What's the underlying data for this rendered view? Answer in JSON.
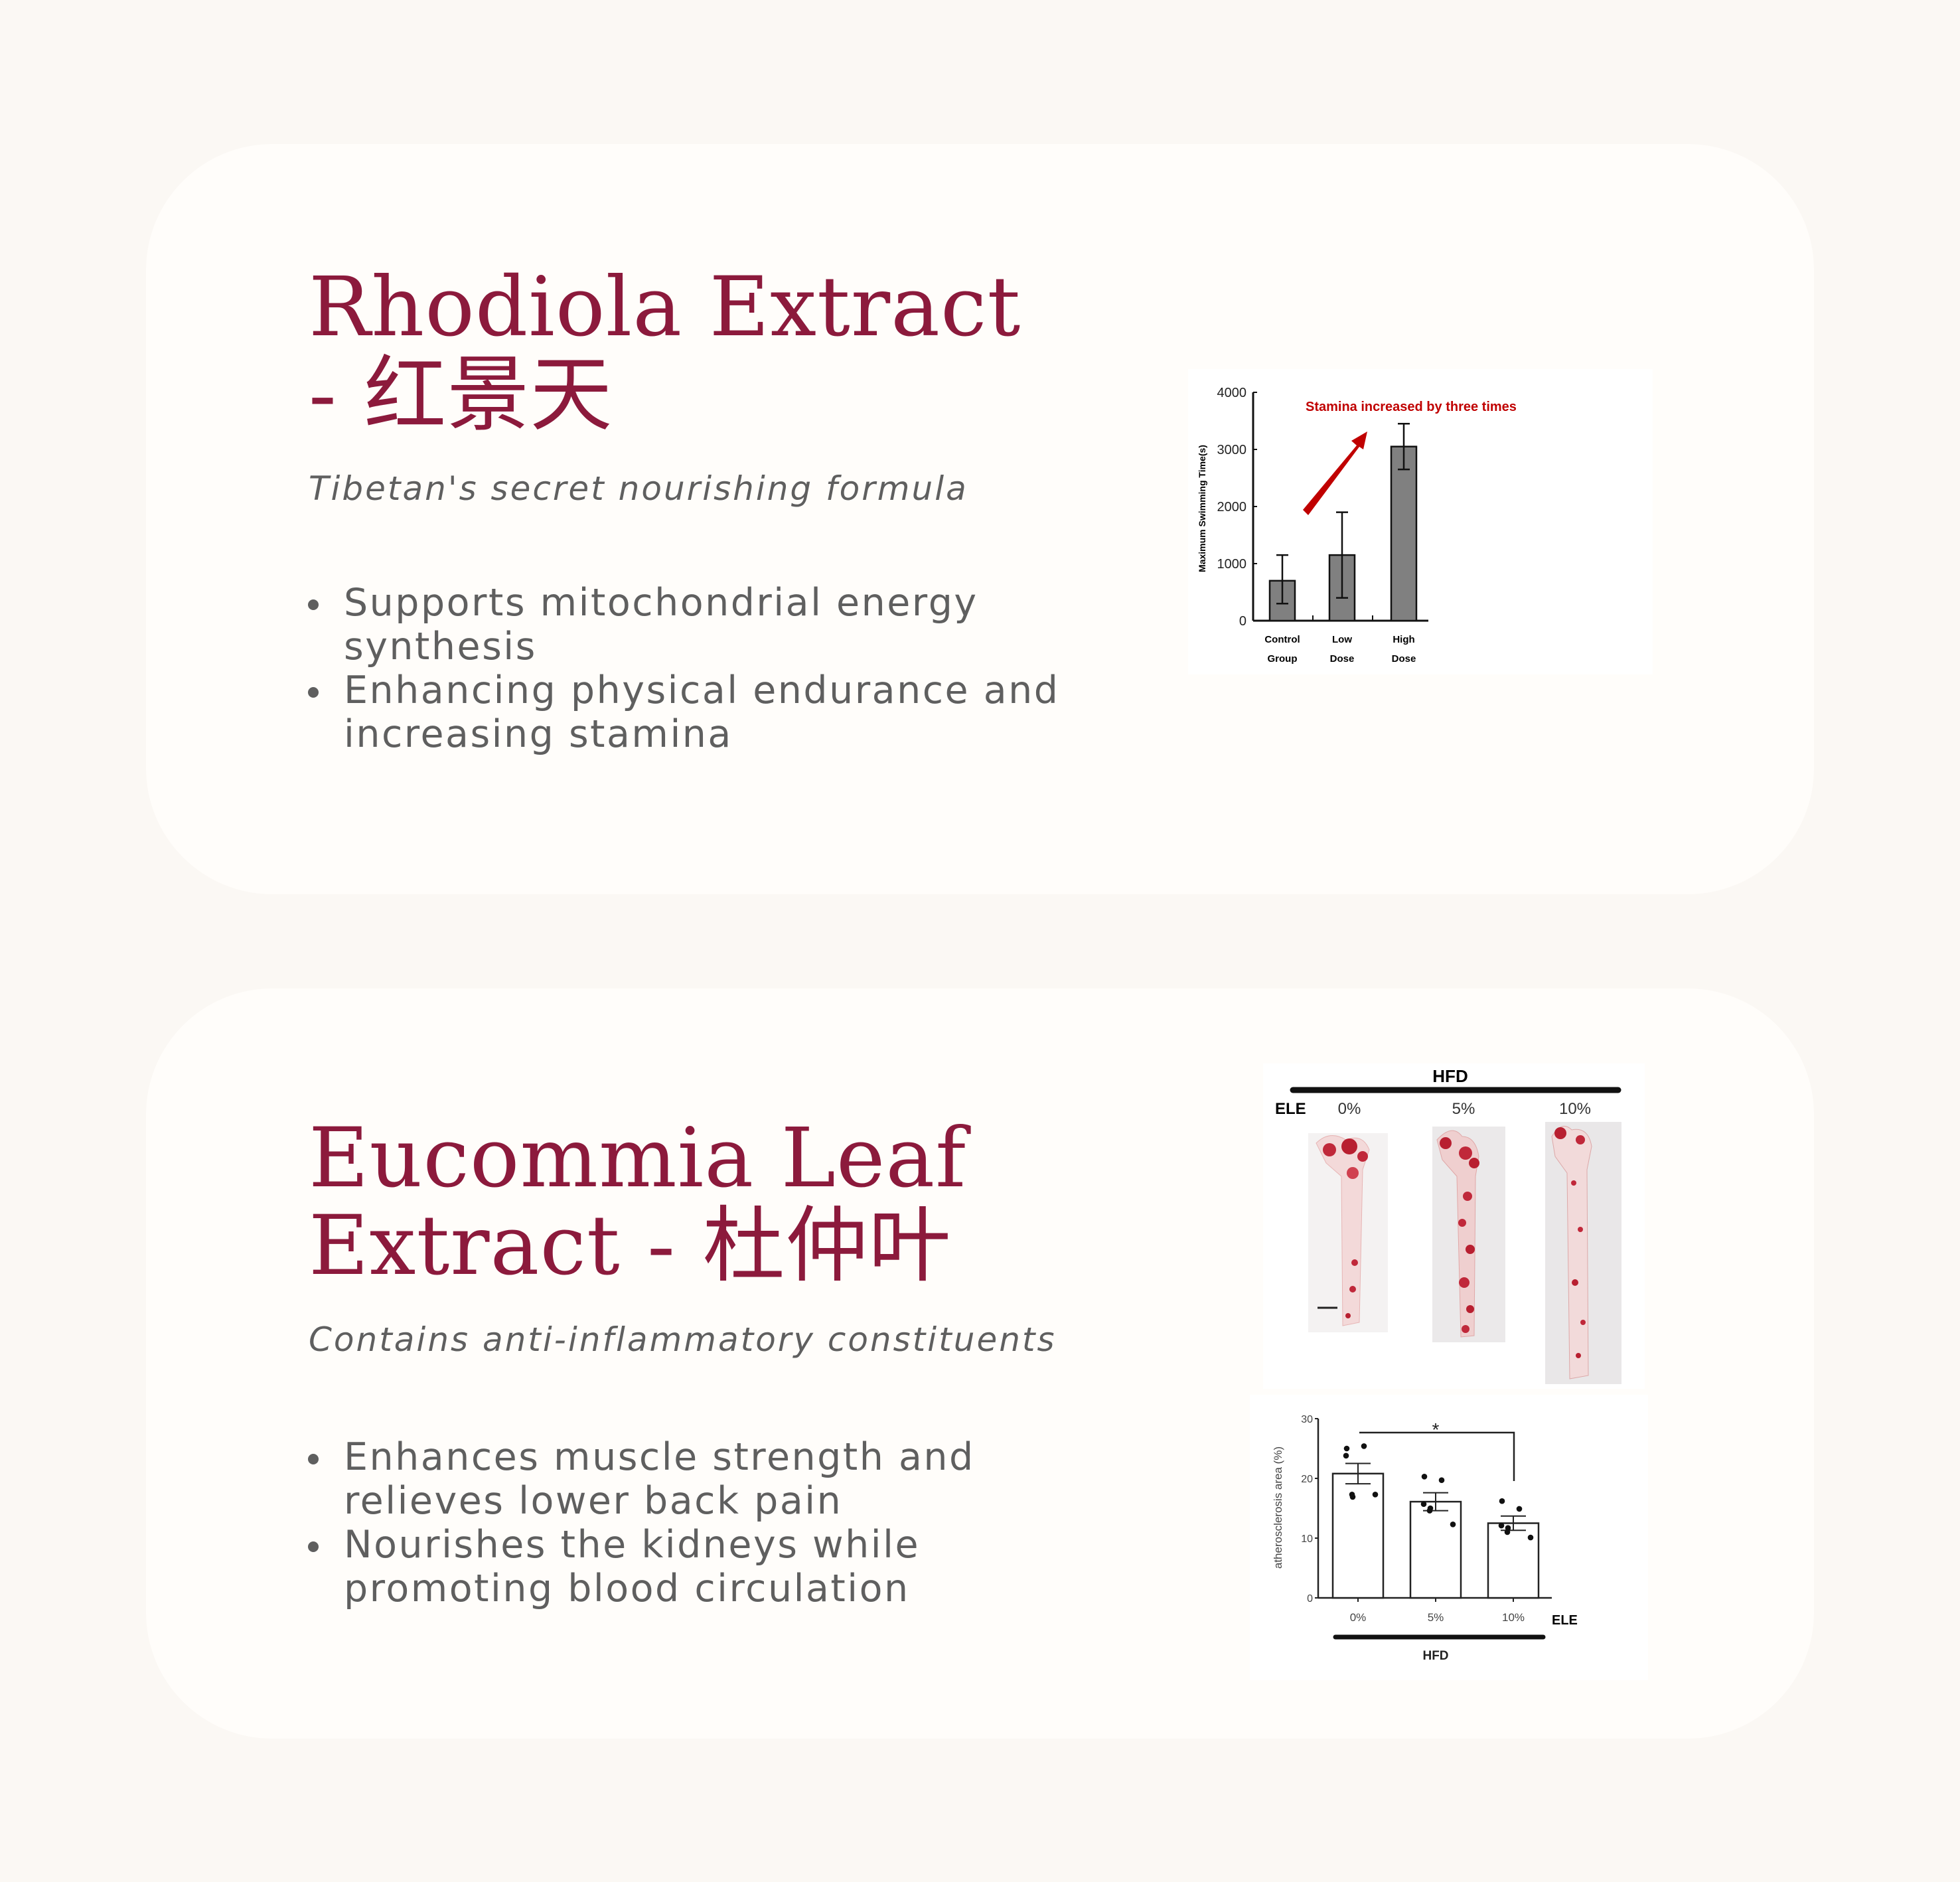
{
  "sections": [
    {
      "title_line1": "Rhodiola Extract",
      "title_line2": "- 红景天",
      "subtitle": "Tibetan's secret nourishing formula",
      "bullets": [
        "Supports mitochondrial energy synthesis",
        "Enhancing physical endurance and increasing stamina"
      ]
    },
    {
      "title_line1": "Eucommia Leaf",
      "title_line2": "Extract - 杜仲叶",
      "subtitle": "Contains anti-inflammatory constituents",
      "bullets": [
        "Enhances muscle strength and relieves lower back pain",
        "Nourishes the kidneys while promoting blood circulation"
      ]
    }
  ],
  "colors": {
    "title": "#8c1a3c",
    "text": "#5f5f5f",
    "annotation": "#c00000",
    "bar_gray": "#808080"
  },
  "photo_panel": {
    "group_label": "HFD",
    "row_label": "ELE",
    "columns": [
      "0%",
      "5%",
      "10%"
    ]
  },
  "chart_data": [
    {
      "type": "bar",
      "ylabel": "Maximum Swimming Time(s)",
      "xlabel": "",
      "ylim": [
        0,
        4000
      ],
      "yticks": [
        "0",
        "1000",
        "2000",
        "3000",
        "4000"
      ],
      "categories": [
        "Control Group",
        "Low Dose",
        "High Dose"
      ],
      "category_lines": [
        [
          "Control",
          "Group"
        ],
        [
          "Low",
          "Dose"
        ],
        [
          "High",
          "Dose"
        ]
      ],
      "values": [
        700,
        1150,
        3050
      ],
      "error_low": [
        300,
        400,
        2650
      ],
      "error_high": [
        1150,
        1900,
        3450
      ],
      "annotation": "Stamina increased by three times",
      "grid": false
    },
    {
      "type": "bar",
      "ylabel": "atherosclerosis area (%)",
      "xlabel": "ELE",
      "group_label": "HFD",
      "ylim": [
        0,
        30
      ],
      "yticks": [
        "0",
        "10",
        "20",
        "30"
      ],
      "categories": [
        "0%",
        "5%",
        "10%"
      ],
      "values": [
        20.8,
        16.1,
        12.5
      ],
      "sem": [
        1.7,
        1.5,
        1.2
      ],
      "points": [
        [
          25.0,
          25.4,
          23.8,
          16.9,
          17.3,
          17.3
        ],
        [
          20.3,
          19.7,
          15.7,
          15.0,
          14.6,
          12.3
        ],
        [
          16.2,
          14.9,
          12.1,
          11.7,
          11.0,
          10.1
        ]
      ],
      "significance": "*",
      "grid": false
    }
  ]
}
